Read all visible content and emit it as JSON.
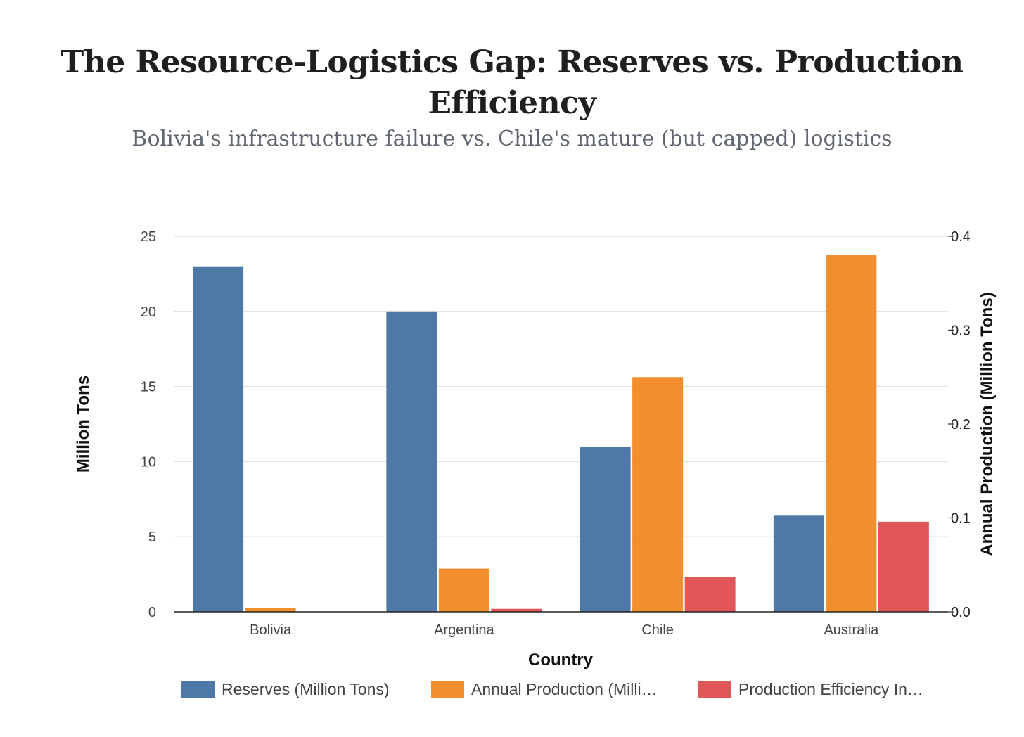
{
  "title": "The Resource-Logistics Gap: Reserves vs. Production Efficiency",
  "subtitle": "Bolivia's infrastructure failure vs. Chile's mature (but capped) logistics",
  "chart_data": {
    "type": "bar",
    "categories": [
      "Bolivia",
      "Argentina",
      "Chile",
      "Australia"
    ],
    "xlabel": "Country",
    "ylabel": "Million Tons",
    "y2label": "Annual Production (Million Tons)",
    "ylim": [
      0,
      25
    ],
    "y2lim": [
      0,
      0.4
    ],
    "yticks": [
      "0",
      "5",
      "10",
      "15",
      "20",
      "25"
    ],
    "y2ticks": [
      "0.0",
      "0.1",
      "0.2",
      "0.3",
      "0.4"
    ],
    "grid": true,
    "legend_position": "bottom",
    "series": [
      {
        "name": "Reserves (Million Tons)",
        "legend_label": "Reserves (Million Tons)",
        "axis": "left",
        "color": "#4e79a7",
        "values": [
          23,
          20,
          11,
          6.4
        ]
      },
      {
        "name": "Annual Production (Million Tons)",
        "legend_label": "Annual Production (Milli…",
        "axis": "right",
        "color": "#f28e2b",
        "values": [
          0.004,
          0.046,
          0.25,
          0.38
        ]
      },
      {
        "name": "Production Efficiency Index",
        "legend_label": "Production Efficiency In…",
        "axis": "left",
        "color": "#e15759",
        "values": [
          0,
          0.2,
          2.3,
          6
        ]
      }
    ]
  }
}
